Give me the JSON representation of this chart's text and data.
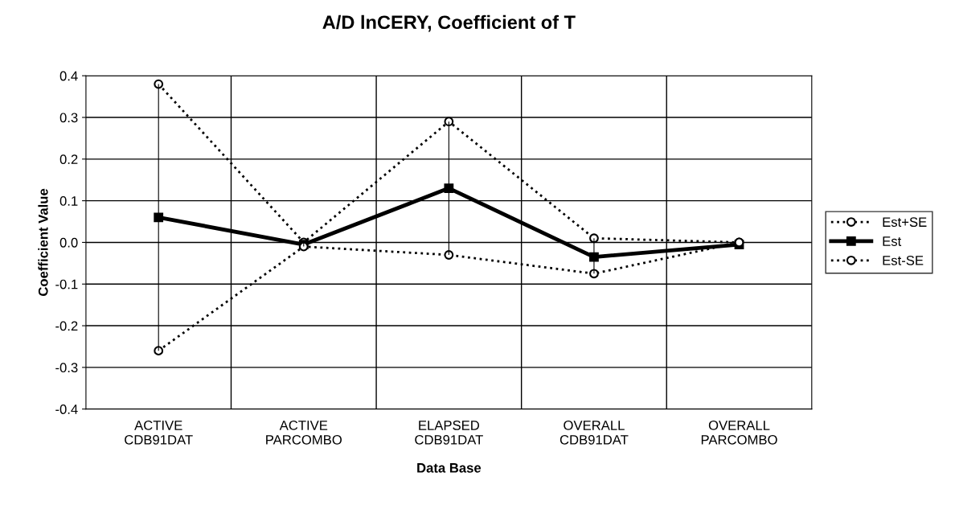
{
  "chart_data": {
    "type": "line",
    "title": "A/D lnCERY, Coefficient of T",
    "xlabel": "Data Base",
    "ylabel": "Coefficient Value",
    "categories": [
      "ACTIVE\nCDB91DAT",
      "ACTIVE\nPARCOMBO",
      "ELAPSED\nCDB91DAT",
      "OVERALL\nCDB91DAT",
      "OVERALL\nPARCOMBO"
    ],
    "series": [
      {
        "name": "Est+SE",
        "color": "#000000",
        "values": [
          0.38,
          0.0,
          0.29,
          0.01,
          0.0
        ],
        "marker": "circle",
        "line_style": "dotted"
      },
      {
        "name": "Est",
        "color": "#000000",
        "values": [
          0.06,
          -0.005,
          0.13,
          -0.035,
          -0.005
        ],
        "errors": [
          [
            -0.26,
            0.38
          ],
          [
            -0.01,
            0.0
          ],
          [
            -0.03,
            0.29
          ],
          [
            -0.075,
            0.01
          ],
          null
        ],
        "marker": "square",
        "line_style": "solid"
      },
      {
        "name": "Est-SE",
        "color": "#000000",
        "values": [
          -0.26,
          -0.01,
          -0.03,
          -0.075,
          0.0
        ],
        "marker": "circle",
        "line_style": "dotted"
      }
    ],
    "ylim": [
      -0.4,
      0.4
    ],
    "yticks": [
      {
        "value": -0.4,
        "label": "-0.4"
      },
      {
        "value": -0.3,
        "label": "-0.3"
      },
      {
        "value": -0.2,
        "label": "-0.2"
      },
      {
        "value": -0.1,
        "label": "-0.1"
      },
      {
        "value": 0.0,
        "label": "0.0"
      },
      {
        "value": 0.1,
        "label": "0.1"
      },
      {
        "value": 0.2,
        "label": "0.2"
      },
      {
        "value": 0.3,
        "label": "0.3"
      },
      {
        "value": 0.4,
        "label": "0.4"
      }
    ],
    "grid": true,
    "legend": "right"
  }
}
